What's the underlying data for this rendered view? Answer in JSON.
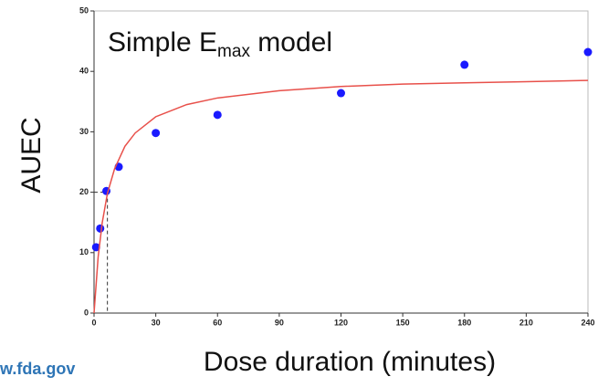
{
  "chart_data": {
    "type": "scatter",
    "title": [
      "Simple E",
      "max",
      " model"
    ],
    "x_label": "Dose duration (minutes)",
    "y_label": "AUEC",
    "source": "w.fda.gov",
    "xlim": [
      0,
      240
    ],
    "xticks": [
      0,
      30,
      60,
      90,
      120,
      150,
      180,
      210,
      240
    ],
    "ylim": [
      0,
      50
    ],
    "yticks": [
      0,
      10,
      20,
      30,
      40,
      50
    ],
    "series": [
      {
        "type": "scatter",
        "color": "#1a1aff",
        "x": [
          1,
          3,
          6,
          12,
          30,
          60,
          120,
          180,
          240
        ],
        "values": [
          10.9,
          14.0,
          20.2,
          24.2,
          29.8,
          32.8,
          36.4,
          41.1,
          43.2
        ]
      },
      {
        "type": "line",
        "color": "#e8504a",
        "x": [
          0,
          2,
          4,
          6.5,
          10,
          15,
          20,
          30,
          45,
          60,
          90,
          120,
          150,
          180,
          210,
          240
        ],
        "values": [
          0,
          9.3,
          15.0,
          19.8,
          23.9,
          27.6,
          29.8,
          32.5,
          34.5,
          35.6,
          36.8,
          37.5,
          37.9,
          38.1,
          38.3,
          38.5
        ]
      }
    ],
    "ed50_marker": {
      "x": 6.5,
      "y": 20
    }
  }
}
